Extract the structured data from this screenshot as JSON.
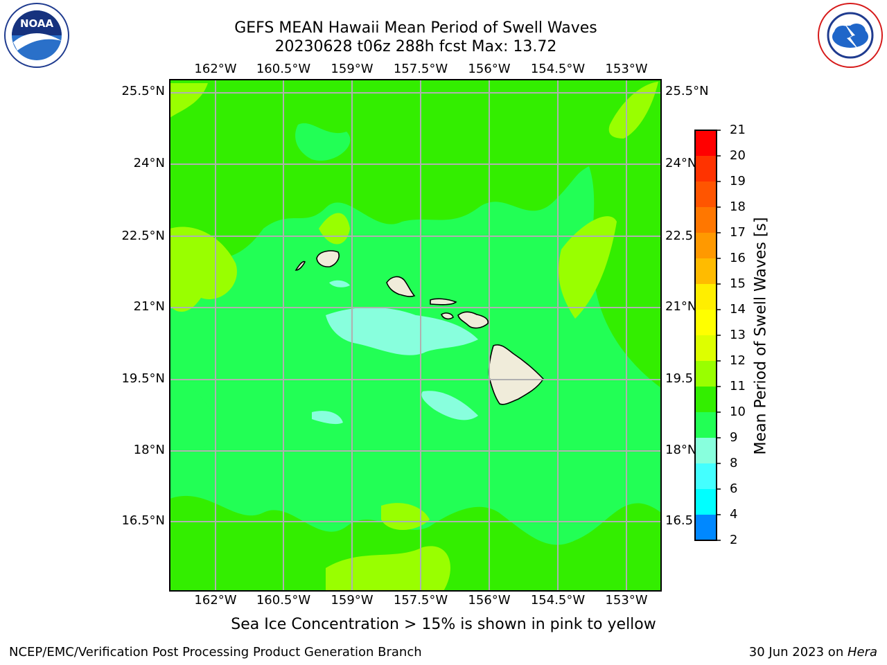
{
  "header": {
    "title": "GEFS MEAN Hawaii Mean Period of Swell Waves",
    "subtitle": "20230628 t06z 288h fcst   Max: 13.72"
  },
  "map": {
    "lon_labels": [
      "162°W",
      "160.5°W",
      "159°W",
      "157.5°W",
      "156°W",
      "154.5°W",
      "153°W"
    ],
    "lat_labels": [
      "25.5°N",
      "24°N",
      "22.5°N",
      "21°N",
      "19.5°N",
      "18°N",
      "16.5°N"
    ],
    "lat_labels_right": [
      "25.5°N",
      "24°N",
      "22.5",
      "21°N",
      "19.5",
      "18°N",
      "16.5"
    ],
    "field_max": 13.72,
    "dominant_range": "10-11"
  },
  "colorbar": {
    "title": "Mean Period of Swell Waves [s]",
    "ticks": [
      "21",
      "20",
      "19",
      "18",
      "17",
      "16",
      "15",
      "14",
      "13",
      "12",
      "11",
      "10",
      "9",
      "8",
      "6",
      "4",
      "2"
    ],
    "colors": [
      "#ff0000",
      "#ff3300",
      "#ff5500",
      "#ff7700",
      "#ff9900",
      "#ffbb00",
      "#ffee00",
      "#ffff00",
      "#ddff00",
      "#99ff00",
      "#33ee00",
      "#22ff55",
      "#88ffdd",
      "#44ffff",
      "#00ffff",
      "#0088ff",
      "#0033ff",
      "#0000ff"
    ]
  },
  "caption": "Sea Ice Concentration > 15% is shown in pink to yellow",
  "footer": {
    "left": "NCEP/EMC/Verification Post Processing Product Generation Branch",
    "date": "30 Jun 2023 on ",
    "host": "Hera"
  },
  "logos": {
    "left": "NOAA",
    "right": "NATIONAL WEATHER SERVICE"
  }
}
